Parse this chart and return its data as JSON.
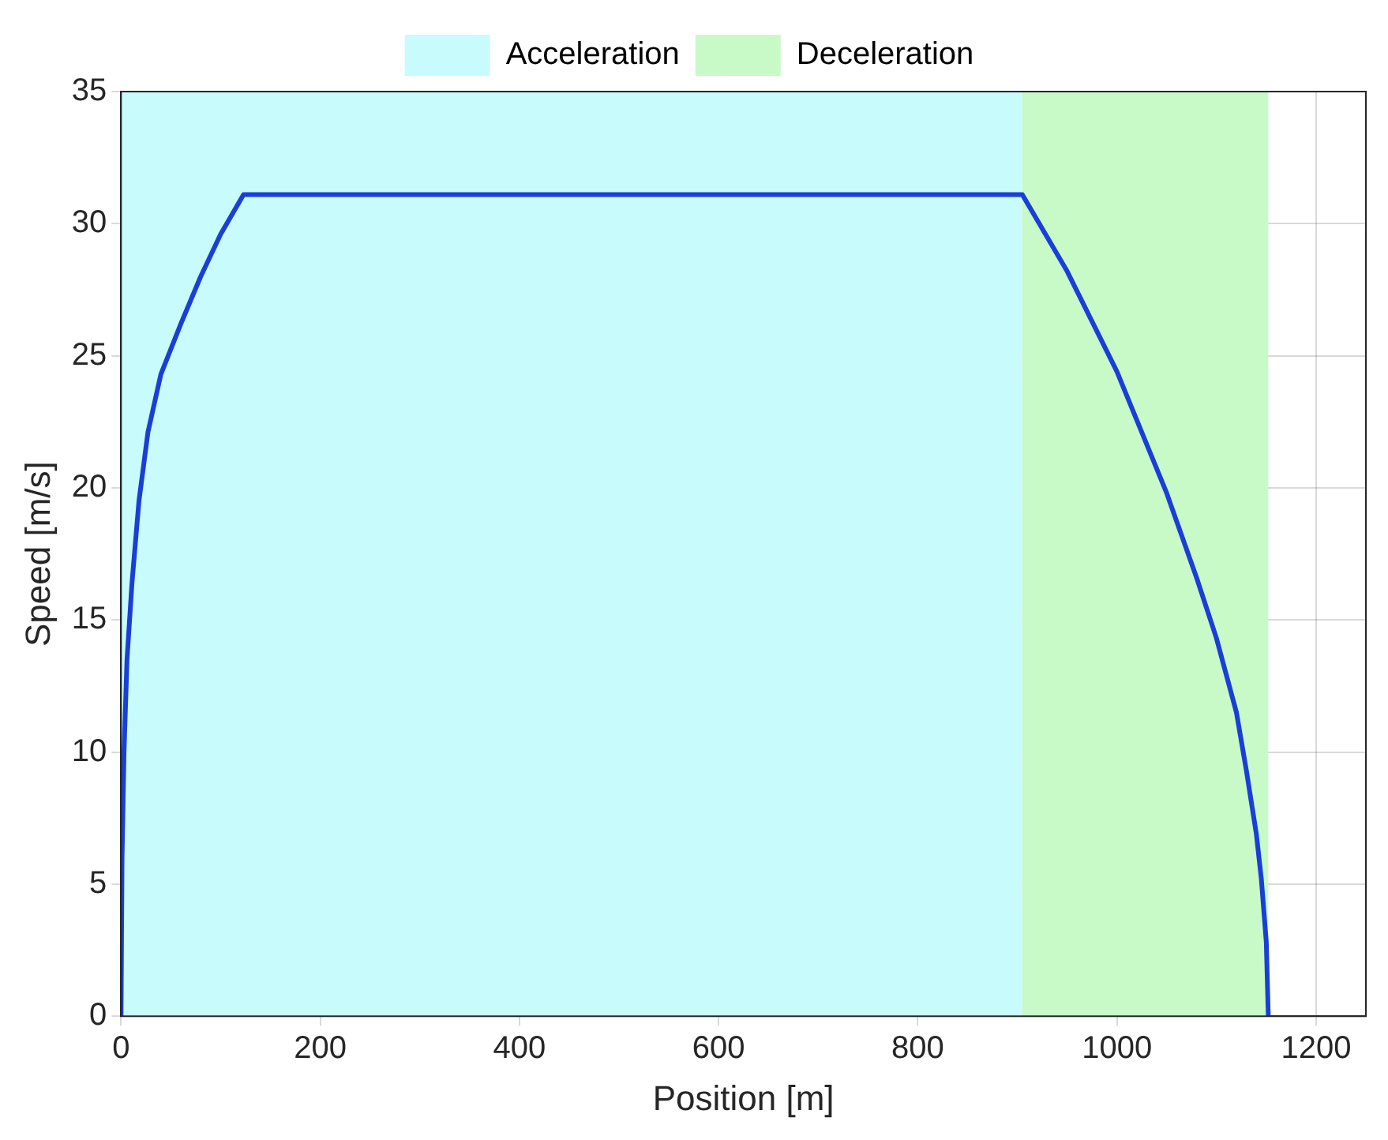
{
  "chart_data": {
    "type": "line",
    "xlabel": "Position [m]",
    "ylabel": "Speed [m/s]",
    "x": [
      0,
      1,
      3,
      6,
      11,
      18,
      27,
      40,
      60,
      80,
      100,
      123,
      905,
      950,
      1000,
      1050,
      1080,
      1100,
      1120,
      1130,
      1140,
      1145,
      1150,
      1152
    ],
    "series": [
      {
        "color": "#1a3fd6",
        "values": [
          0,
          6,
          10,
          13.5,
          16.4,
          19.5,
          22.1,
          24.3,
          26.2,
          28,
          29.6,
          31.1,
          31.1,
          28.2,
          24.4,
          19.8,
          16.6,
          14.3,
          11.5,
          9.3,
          6.9,
          5.2,
          2.8,
          0
        ]
      }
    ],
    "xlim": [
      0,
      1250
    ],
    "xticks": [
      0,
      200,
      400,
      600,
      800,
      1000,
      1200
    ],
    "ylim": [
      0,
      35
    ],
    "yticks": [
      0,
      5,
      10,
      15,
      20,
      25,
      30,
      35
    ],
    "bands": [
      {
        "axis": "x",
        "from": 0,
        "to": 905,
        "label": "Acceleration",
        "color": "#c8fcfc"
      },
      {
        "axis": "x",
        "from": 905,
        "to": 1152,
        "label": "Deceleration",
        "color": "#c8fac8"
      }
    ],
    "grid": true,
    "legend": "top",
    "marker": "none",
    "line_style": "solid"
  }
}
